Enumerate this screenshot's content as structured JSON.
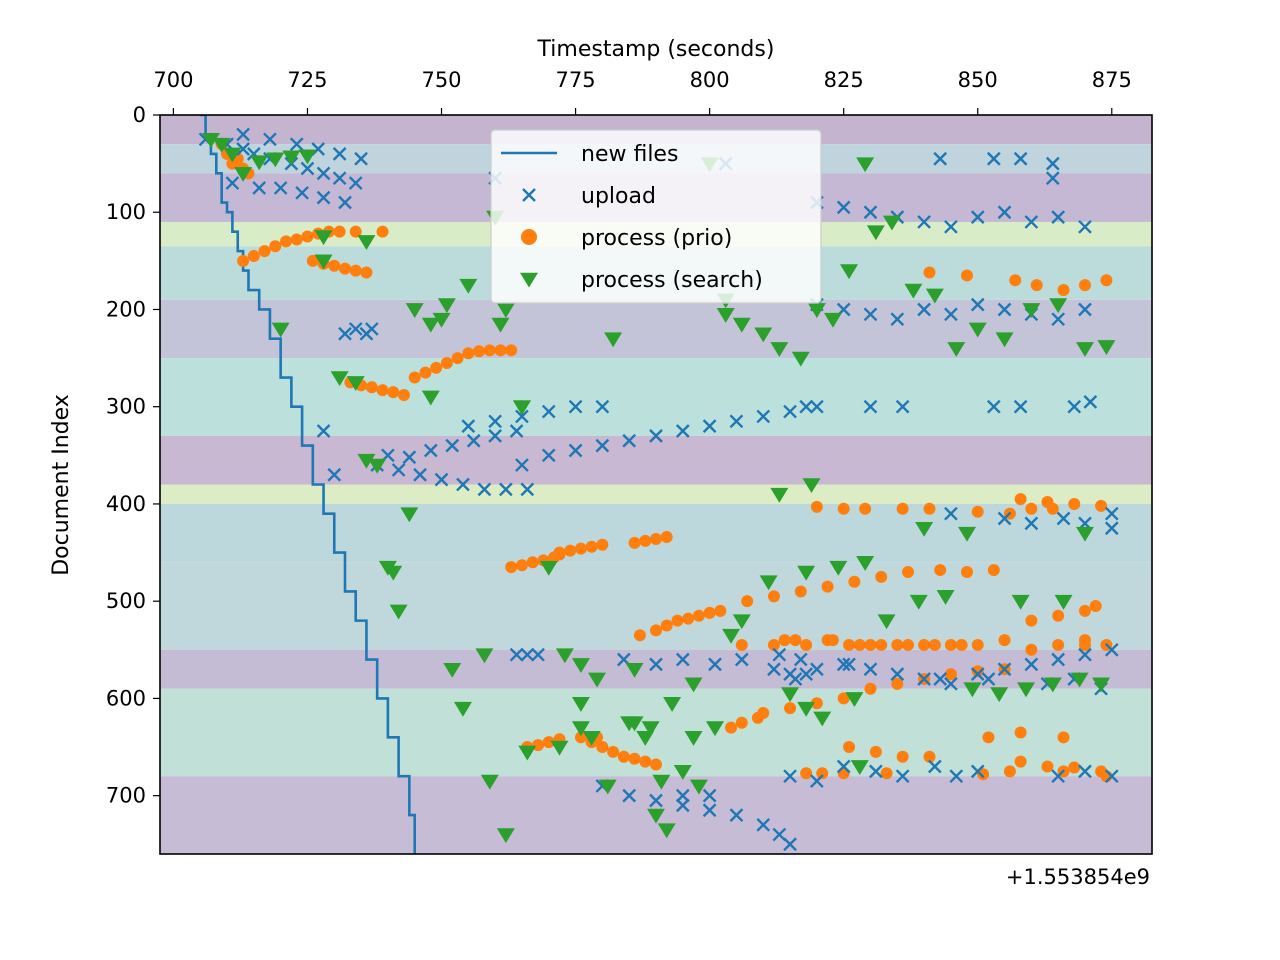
{
  "chart_data": {
    "type": "scatter",
    "title": "",
    "xlabel": "Timestamp (seconds)",
    "ylabel": "Document Index",
    "x_axis_position": "top",
    "y_axis_inverted": true,
    "x_offset_label": "+1.553854e9",
    "xlim": [
      697.5,
      882.5
    ],
    "ylim": [
      760,
      0
    ],
    "x_ticks": [
      "700",
      "725",
      "750",
      "775",
      "800",
      "825",
      "850",
      "875"
    ],
    "x_tick_values": [
      700,
      725,
      750,
      775,
      800,
      825,
      850,
      875
    ],
    "y_ticks": [
      "0",
      "100",
      "200",
      "300",
      "400",
      "500",
      "600",
      "700"
    ],
    "y_tick_values": [
      0,
      100,
      200,
      300,
      400,
      500,
      600,
      700
    ],
    "grid": false,
    "legend_position": "top-center",
    "background_bands": [
      {
        "y0": 0,
        "y1": 30,
        "color": "#c4b4d0"
      },
      {
        "y0": 30,
        "y1": 60,
        "color": "#bfd4dc"
      },
      {
        "y0": 60,
        "y1": 110,
        "color": "#c5b8d4"
      },
      {
        "y0": 110,
        "y1": 135,
        "color": "#d8ecc8"
      },
      {
        "y0": 135,
        "y1": 190,
        "color": "#bcdcdc"
      },
      {
        "y0": 190,
        "y1": 250,
        "color": "#c4c4d8"
      },
      {
        "y0": 250,
        "y1": 330,
        "color": "#bce0dc"
      },
      {
        "y0": 330,
        "y1": 380,
        "color": "#c8b8d2"
      },
      {
        "y0": 380,
        "y1": 400,
        "color": "#dcecc4"
      },
      {
        "y0": 400,
        "y1": 460,
        "color": "#bcd8dc"
      },
      {
        "y0": 460,
        "y1": 550,
        "color": "#c0d8dc"
      },
      {
        "y0": 550,
        "y1": 590,
        "color": "#c4bcd4"
      },
      {
        "y0": 590,
        "y1": 680,
        "color": "#c0e0d8"
      },
      {
        "y0": 680,
        "y1": 760,
        "color": "#c6bcd6"
      }
    ],
    "series": [
      {
        "name": "new files",
        "kind": "line",
        "color": "#1f77b4",
        "x": [
          705,
          706,
          707,
          708,
          709,
          710,
          711,
          712,
          713,
          714,
          716,
          718,
          720,
          722,
          724,
          726,
          728,
          730,
          732,
          734,
          736,
          738,
          740,
          742,
          744,
          745
        ],
        "y": [
          0,
          20,
          40,
          60,
          90,
          100,
          120,
          140,
          160,
          180,
          200,
          230,
          270,
          300,
          340,
          380,
          410,
          450,
          490,
          520,
          560,
          600,
          640,
          680,
          720,
          760
        ]
      },
      {
        "name": "upload",
        "kind": "x",
        "color": "#1f77b4",
        "x": [
          706,
          710,
          713,
          715,
          718,
          722,
          725,
          728,
          731,
          734,
          711,
          716,
          720,
          724,
          728,
          732,
          713,
          718,
          723,
          727,
          731,
          735,
          732,
          734,
          736,
          737,
          728,
          730,
          738,
          742,
          746,
          750,
          754,
          758,
          762,
          766,
          740,
          744,
          748,
          752,
          756,
          760,
          764,
          755,
          760,
          765,
          770,
          775,
          780,
          760,
          765,
          770,
          775,
          780,
          785,
          790,
          795,
          800,
          805,
          810,
          815,
          780,
          785,
          790,
          795,
          800,
          805,
          810,
          813,
          815,
          820,
          825,
          830,
          835,
          840,
          845,
          850,
          855,
          860,
          865,
          870,
          820,
          825,
          830,
          835,
          840,
          845,
          850,
          855,
          860,
          865,
          870,
          818,
          820,
          830,
          836,
          853,
          858,
          868,
          871,
          843,
          853,
          858,
          864,
          864,
          845,
          855,
          860,
          866,
          875,
          870,
          875,
          813,
          817,
          825,
          830,
          835,
          840,
          845,
          850,
          855,
          860,
          865,
          870,
          875,
          815,
          820,
          825,
          831,
          836,
          842,
          846,
          850,
          865,
          870,
          875,
          764,
          766,
          768,
          784,
          790,
          795,
          801,
          806,
          812,
          815,
          816,
          818,
          820,
          826,
          843,
          852,
          863,
          868,
          873,
          803,
          795,
          800
        ],
        "y": [
          25,
          30,
          35,
          40,
          45,
          50,
          55,
          60,
          65,
          70,
          70,
          75,
          75,
          80,
          85,
          90,
          20,
          25,
          30,
          35,
          40,
          45,
          225,
          220,
          225,
          220,
          325,
          370,
          360,
          365,
          370,
          375,
          380,
          385,
          385,
          385,
          350,
          352,
          345,
          340,
          335,
          330,
          325,
          320,
          315,
          310,
          305,
          300,
          300,
          65,
          360,
          350,
          345,
          340,
          335,
          330,
          325,
          320,
          315,
          310,
          305,
          690,
          700,
          705,
          710,
          715,
          720,
          730,
          740,
          750,
          90,
          95,
          100,
          105,
          110,
          115,
          105,
          100,
          110,
          105,
          115,
          195,
          200,
          205,
          210,
          200,
          205,
          195,
          200,
          205,
          210,
          200,
          300,
          300,
          300,
          300,
          300,
          300,
          300,
          295,
          45,
          45,
          45,
          50,
          65,
          410,
          415,
          420,
          415,
          410,
          420,
          425,
          555,
          560,
          565,
          570,
          575,
          580,
          585,
          575,
          570,
          565,
          560,
          555,
          550,
          680,
          685,
          670,
          675,
          680,
          670,
          680,
          675,
          680,
          675,
          680,
          555,
          555,
          555,
          560,
          565,
          560,
          565,
          560,
          570,
          575,
          580,
          575,
          570,
          565,
          580,
          580,
          585,
          580,
          590,
          50,
          700,
          700
        ]
      },
      {
        "name": "process (prio)",
        "kind": "circle",
        "color": "#ff7f0e",
        "x": [
          709,
          710,
          711,
          712,
          713,
          714,
          713,
          715,
          717,
          719,
          721,
          723,
          725,
          727,
          729,
          731,
          734,
          739,
          726,
          728,
          730,
          732,
          734,
          736,
          733,
          735,
          737,
          739,
          741,
          743,
          745,
          747,
          749,
          751,
          753,
          755,
          757,
          759,
          761,
          763,
          763,
          765,
          767,
          769,
          771,
          772,
          766,
          768,
          770,
          772,
          776,
          778,
          780,
          782,
          784,
          786,
          788,
          790,
          772,
          774,
          776,
          778,
          780,
          779,
          786,
          788,
          790,
          792,
          787,
          790,
          792,
          794,
          796,
          798,
          800,
          802,
          804,
          806,
          809,
          810,
          815,
          820,
          825,
          830,
          835,
          840,
          845,
          850,
          855,
          860,
          865,
          870,
          872,
          807,
          812,
          817,
          822,
          827,
          832,
          837,
          843,
          848,
          853,
          858,
          863,
          868,
          873,
          820,
          825,
          829,
          836,
          841,
          850,
          856,
          860,
          864,
          870,
          874,
          812,
          816,
          822,
          826,
          830,
          835,
          840,
          845,
          850,
          855,
          860,
          865,
          870,
          806,
          814,
          818,
          823,
          828,
          832,
          837,
          842,
          847,
          852,
          858,
          866,
          826,
          831,
          836,
          841,
          858,
          863,
          868,
          873,
          818,
          821,
          825,
          833,
          851,
          856,
          866,
          874,
          841,
          848,
          857,
          861,
          866,
          870,
          874
        ],
        "y": [
          30,
          40,
          50,
          45,
          55,
          60,
          150,
          145,
          140,
          135,
          130,
          128,
          125,
          122,
          120,
          120,
          120,
          120,
          150,
          153,
          155,
          158,
          160,
          162,
          275,
          278,
          280,
          283,
          285,
          288,
          270,
          265,
          260,
          255,
          250,
          245,
          243,
          242,
          242,
          242,
          465,
          463,
          460,
          458,
          455,
          452,
          650,
          648,
          645,
          642,
          640,
          645,
          650,
          655,
          660,
          662,
          665,
          668,
          450,
          448,
          446,
          444,
          442,
          640,
          440,
          438,
          436,
          434,
          535,
          530,
          525,
          520,
          518,
          515,
          512,
          510,
          630,
          625,
          620,
          615,
          610,
          605,
          600,
          590,
          585,
          580,
          575,
          572,
          570,
          520,
          515,
          510,
          505,
          500,
          495,
          490,
          485,
          480,
          475,
          470,
          468,
          470,
          468,
          395,
          398,
          400,
          402,
          403,
          405,
          405,
          405,
          405,
          408,
          410,
          405,
          405,
          545,
          545,
          545,
          540,
          540,
          545,
          545,
          545,
          545,
          545,
          545,
          540,
          550,
          545,
          540,
          545,
          540,
          545,
          540,
          545,
          545,
          545,
          545,
          545,
          640,
          635,
          640,
          650,
          655,
          660,
          660,
          665,
          670,
          671,
          675,
          677,
          677,
          677,
          677,
          678,
          675,
          675,
          680,
          162,
          165,
          170,
          175,
          180,
          175,
          170
        ],
        "size": 6
      },
      {
        "name": "process (search)",
        "kind": "triangle",
        "color": "#2ca02c",
        "x": [
          707,
          709,
          711,
          713,
          716,
          719,
          722,
          725,
          728,
          734,
          738,
          741,
          745,
          748,
          750,
          751,
          755,
          760,
          762,
          765,
          770,
          773,
          776,
          779,
          782,
          786,
          790,
          792,
          795,
          798,
          800,
          803,
          806,
          810,
          813,
          817,
          820,
          823,
          826,
          831,
          834,
          838,
          842,
          846,
          850,
          855,
          860,
          865,
          870,
          874,
          720,
          731,
          736,
          740,
          742,
          752,
          754,
          759,
          762,
          781,
          785,
          789,
          793,
          797,
          804,
          811,
          818,
          824,
          829,
          833,
          839,
          844,
          849,
          854,
          859,
          864,
          869,
          873,
          748,
          728,
          744,
          736,
          758,
          765,
          772,
          778,
          788,
          797,
          766,
          776,
          786,
          801,
          806,
          813,
          819,
          828,
          840,
          848,
          858,
          866,
          870,
          829,
          803,
          761,
          776,
          791,
          815,
          827,
          818,
          821
        ],
        "y": [
          25,
          30,
          40,
          60,
          48,
          45,
          43,
          42,
          150,
          275,
          360,
          470,
          200,
          215,
          210,
          195,
          175,
          105,
          200,
          300,
          465,
          555,
          565,
          580,
          230,
          570,
          720,
          735,
          675,
          690,
          50,
          190,
          215,
          225,
          240,
          250,
          200,
          210,
          160,
          120,
          110,
          180,
          185,
          240,
          220,
          230,
          200,
          195,
          240,
          238,
          220,
          270,
          355,
          465,
          510,
          570,
          610,
          685,
          740,
          690,
          625,
          630,
          605,
          585,
          535,
          480,
          470,
          465,
          460,
          520,
          500,
          495,
          590,
          595,
          590,
          585,
          580,
          585,
          290,
          125,
          410,
          130,
          555,
          300,
          650,
          640,
          640,
          640,
          655,
          630,
          625,
          630,
          520,
          390,
          380,
          670,
          425,
          430,
          500,
          500,
          430,
          50,
          205,
          215,
          605,
          685,
          595,
          600,
          610,
          620
        ],
        "size": 9
      }
    ]
  }
}
